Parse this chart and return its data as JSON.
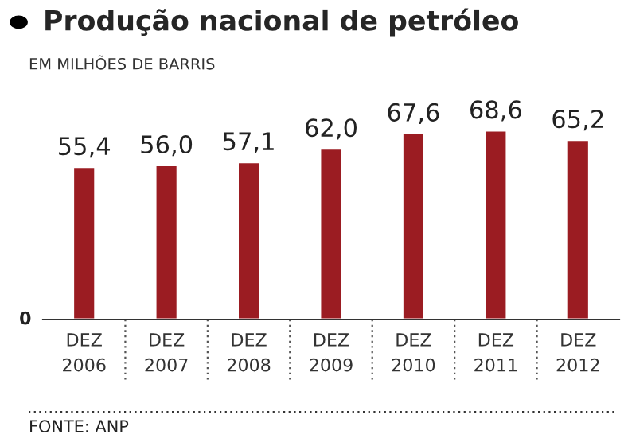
{
  "chart_data": {
    "type": "bar",
    "title": "Produção nacional de petróleo",
    "subtitle": "EM MILHÕES DE BARRIS",
    "categories": [
      "DEZ\n2006",
      "DEZ\n2007",
      "DEZ\n2008",
      "DEZ\n2009",
      "DEZ\n2010",
      "DEZ\n2011",
      "DEZ\n2012"
    ],
    "values": [
      55.4,
      56.0,
      57.1,
      62.0,
      67.6,
      68.6,
      65.2
    ],
    "value_labels": [
      "55,4",
      "56,0",
      "57,1",
      "62,0",
      "67,6",
      "68,6",
      "65,2"
    ],
    "color": "#9b1c22",
    "grid": false,
    "legend": false,
    "annotations": [
      "0",
      "FONTE: ANP"
    ]
  }
}
